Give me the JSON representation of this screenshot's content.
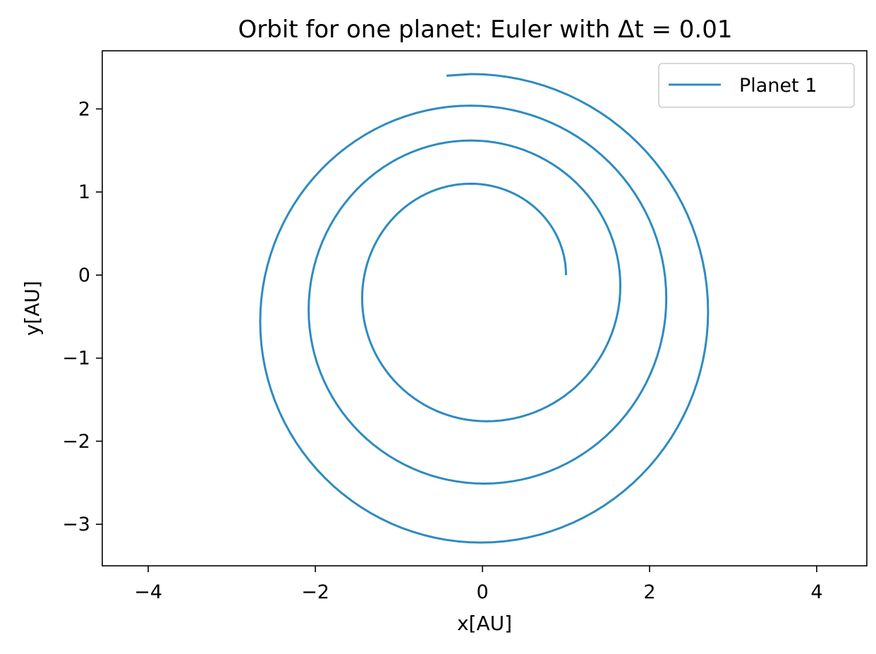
{
  "chart_data": {
    "type": "line",
    "title": "Orbit for one planet: Euler with Δt = 0.01",
    "xlabel": "x[AU]",
    "ylabel": "y[AU]",
    "xlim": [
      -4.55,
      4.6
    ],
    "ylim": [
      -3.5,
      2.7
    ],
    "x_ticks": [
      -4,
      -2,
      0,
      2,
      4
    ],
    "x_tick_labels": [
      "−4",
      "−2",
      "0",
      "2",
      "4"
    ],
    "y_ticks": [
      -3,
      -2,
      -1,
      0,
      1,
      2
    ],
    "y_tick_labels": [
      "−3",
      "−2",
      "−1",
      "0",
      "1",
      "2"
    ],
    "grid": false,
    "legend_position": "top-right",
    "series": [
      {
        "name": "Planet 1",
        "color": "#2e8bc0",
        "spiral_model": {
          "start": [
            1.0,
            0.0
          ],
          "end": [
            -0.43,
            2.4
          ],
          "turns": 3.17,
          "keypoints": [
            {
              "x": 1.0,
              "y": 0.0
            },
            {
              "x": -0.14,
              "y": 1.1
            },
            {
              "x": -1.44,
              "y": -0.28
            },
            {
              "x": 0.05,
              "y": -1.76
            },
            {
              "x": 1.65,
              "y": -0.13
            },
            {
              "x": -0.14,
              "y": 1.62
            },
            {
              "x": -2.08,
              "y": -0.42
            },
            {
              "x": 0.02,
              "y": -2.51
            },
            {
              "x": 2.2,
              "y": -0.28
            },
            {
              "x": -0.14,
              "y": 2.04
            },
            {
              "x": -2.66,
              "y": -0.56
            },
            {
              "x": -0.02,
              "y": -3.22
            },
            {
              "x": 2.7,
              "y": -0.44
            },
            {
              "x": -0.14,
              "y": 2.42
            },
            {
              "x": -0.43,
              "y": 2.4
            }
          ]
        }
      }
    ]
  }
}
